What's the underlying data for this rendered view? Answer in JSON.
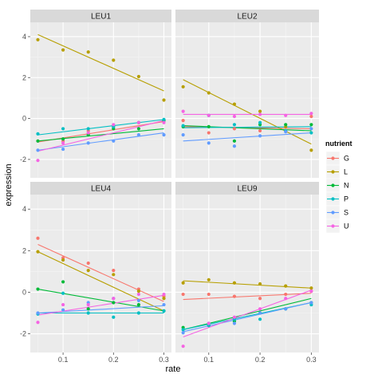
{
  "chart_data": {
    "type": "scatter",
    "xlabel": "rate",
    "ylabel": "expression",
    "xlim": [
      0.035,
      0.315
    ],
    "ylim": [
      -2.9,
      4.7
    ],
    "x_ticks": [
      0.1,
      0.2,
      0.3
    ],
    "x_tick_labels": [
      "0.1",
      "0.2",
      "0.3"
    ],
    "y_ticks": [
      -2,
      0,
      2,
      4
    ],
    "y_tick_labels": [
      "-2",
      "0",
      "2",
      "4"
    ],
    "grid": true,
    "legend": {
      "title": "nutrient",
      "placement": "right",
      "entries": [
        {
          "name": "G",
          "color": "#F8766D"
        },
        {
          "name": "L",
          "color": "#B79F00"
        },
        {
          "name": "N",
          "color": "#00BA38"
        },
        {
          "name": "P",
          "color": "#00BFC4"
        },
        {
          "name": "S",
          "color": "#619CFF"
        },
        {
          "name": "U",
          "color": "#F564E3"
        }
      ]
    },
    "x": [
      0.05,
      0.1,
      0.15,
      0.2,
      0.25,
      0.3
    ],
    "panels": [
      {
        "title": "LEU1",
        "series": [
          {
            "name": "G",
            "values": [
              -1.1,
              -1.1,
              -0.6,
              -0.4,
              -0.2,
              -0.1
            ],
            "fit": [
              -1.15,
              -0.15
            ]
          },
          {
            "name": "L",
            "values": [
              3.85,
              3.35,
              3.25,
              2.85,
              2.05,
              0.9
            ],
            "fit": [
              4.1,
              1.35
            ]
          },
          {
            "name": "N",
            "values": [
              -1.1,
              -1.0,
              -0.8,
              -0.5,
              -0.5,
              -0.1
            ],
            "fit": [
              -1.1,
              -0.5
            ]
          },
          {
            "name": "P",
            "values": [
              -0.75,
              -0.5,
              -0.5,
              -0.4,
              -0.2,
              -0.05
            ],
            "fit": [
              -0.8,
              -0.05
            ]
          },
          {
            "name": "S",
            "values": [
              -1.55,
              -1.5,
              -1.2,
              -1.1,
              -0.8,
              -0.8
            ],
            "fit": [
              -1.55,
              -0.7
            ]
          },
          {
            "name": "U",
            "values": [
              -2.05,
              -1.2,
              -0.7,
              -0.3,
              -0.2,
              -0.2
            ],
            "fit": [
              -1.6,
              -0.1
            ]
          }
        ]
      },
      {
        "title": "LEU2",
        "series": [
          {
            "name": "G",
            "values": [
              -0.1,
              -0.7,
              -0.5,
              -0.6,
              -0.6,
              0.1
            ],
            "fit": [
              -0.4,
              -0.5
            ]
          },
          {
            "name": "L",
            "values": [
              1.55,
              1.25,
              0.7,
              0.35,
              -0.4,
              -1.55
            ],
            "fit": [
              1.9,
              -1.25
            ]
          },
          {
            "name": "N",
            "values": [
              -0.4,
              -0.4,
              -1.1,
              -0.3,
              -0.3,
              -0.3
            ],
            "fit": [
              -0.35,
              -0.6
            ]
          },
          {
            "name": "P",
            "values": [
              -0.35,
              0.15,
              -0.3,
              -0.2,
              -0.6,
              -0.7
            ],
            "fit": [
              -0.45,
              -0.4
            ]
          },
          {
            "name": "S",
            "values": [
              -0.8,
              -1.2,
              -1.35,
              -0.85,
              -0.65,
              -0.5
            ],
            "fit": [
              -1.1,
              -0.7
            ]
          },
          {
            "name": "U",
            "values": [
              0.35,
              0.15,
              0.1,
              0.2,
              0.15,
              0.25
            ],
            "fit": [
              0.2,
              0.2
            ]
          }
        ]
      },
      {
        "title": "LEU4",
        "series": [
          {
            "name": "G",
            "values": [
              2.6,
              1.65,
              1.4,
              1.05,
              0.15,
              -0.2
            ],
            "fit": [
              2.3,
              -0.45
            ]
          },
          {
            "name": "L",
            "values": [
              1.95,
              1.55,
              1.05,
              0.85,
              0.05,
              -0.3
            ],
            "fit": [
              1.95,
              -0.9
            ]
          },
          {
            "name": "N",
            "values": [
              0.15,
              0.5,
              -0.8,
              -0.5,
              -0.6,
              -0.9
            ],
            "fit": [
              0.15,
              -0.9
            ]
          },
          {
            "name": "P",
            "values": [
              -1.05,
              -0.05,
              -1.0,
              -1.2,
              -1.0,
              -0.9
            ],
            "fit": [
              -1.0,
              -1.0
            ]
          },
          {
            "name": "S",
            "values": [
              -1.0,
              -0.85,
              -0.5,
              -0.3,
              -0.4,
              -0.6
            ],
            "fit": [
              -1.0,
              -0.65
            ]
          },
          {
            "name": "U",
            "values": [
              -1.45,
              -0.6,
              -0.6,
              -0.3,
              -0.1,
              -0.1
            ],
            "fit": [
              -1.1,
              -0.15
            ]
          }
        ]
      },
      {
        "title": "LEU9",
        "series": [
          {
            "name": "G",
            "values": [
              -0.1,
              -0.1,
              -0.2,
              -0.3,
              -0.1,
              0.05
            ],
            "fit": [
              -0.35,
              -0.05
            ]
          },
          {
            "name": "L",
            "values": [
              0.45,
              0.6,
              0.45,
              0.4,
              0.3,
              0.2
            ],
            "fit": [
              0.55,
              0.2
            ]
          },
          {
            "name": "N",
            "values": [
              -1.7,
              -1.6,
              -1.4,
              -1.0,
              -0.8,
              -0.5
            ],
            "fit": [
              -1.8,
              -0.3
            ]
          },
          {
            "name": "P",
            "values": [
              -1.8,
              -1.6,
              -1.3,
              -1.3,
              -0.8,
              -0.6
            ],
            "fit": [
              -1.8,
              -0.5
            ]
          },
          {
            "name": "S",
            "values": [
              -1.95,
              -1.5,
              -1.5,
              -1.0,
              -0.8,
              -0.5
            ],
            "fit": [
              -1.9,
              -0.5
            ]
          },
          {
            "name": "U",
            "values": [
              -2.6,
              -1.5,
              -1.2,
              -0.8,
              -0.3,
              0.05
            ],
            "fit": [
              -2.15,
              0.1
            ]
          }
        ]
      }
    ]
  }
}
